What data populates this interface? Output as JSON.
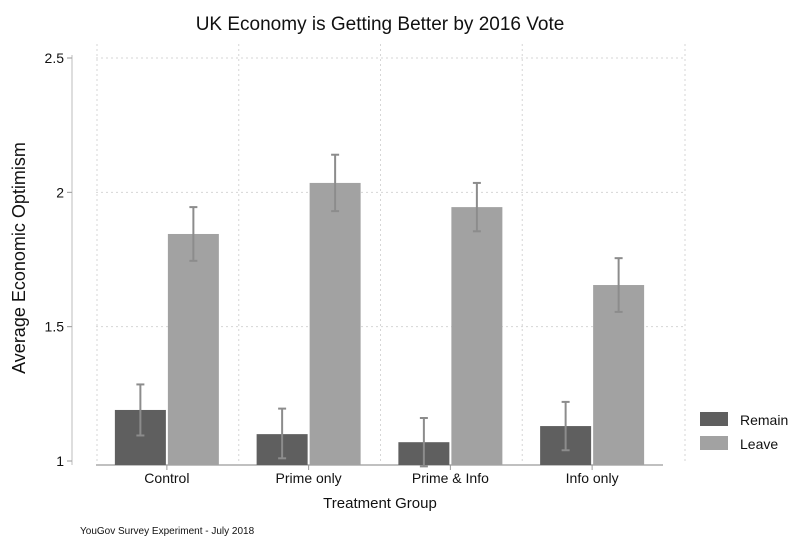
{
  "chart_data": {
    "type": "bar",
    "title": "UK Economy is Getting Better by 2016 Vote",
    "xlabel": "Treatment Group",
    "ylabel": "Average Economic Optimism",
    "note": "YouGov Survey Experiment - July 2018",
    "categories": [
      "Control",
      "Prime only",
      "Prime & Info",
      "Info only"
    ],
    "ylim": [
      1,
      2.5
    ],
    "yticks": [
      1,
      1.5,
      2,
      2.5
    ],
    "ytick_labels": [
      "1",
      "1.5",
      "2",
      "2.5"
    ],
    "grid": true,
    "legend_position": "right",
    "series": [
      {
        "name": "Remain",
        "color": "#5f5f5f",
        "values": [
          1.19,
          1.1,
          1.07,
          1.13
        ],
        "ci_low": [
          1.095,
          1.01,
          0.98,
          1.04
        ],
        "ci_high": [
          1.285,
          1.195,
          1.16,
          1.22
        ]
      },
      {
        "name": "Leave",
        "color": "#a2a2a2",
        "values": [
          1.845,
          2.035,
          1.945,
          1.655
        ],
        "ci_low": [
          1.745,
          1.93,
          1.855,
          1.555
        ],
        "ci_high": [
          1.945,
          2.14,
          2.035,
          1.755
        ]
      }
    ],
    "errorbar_color": "#8c8c8c"
  }
}
